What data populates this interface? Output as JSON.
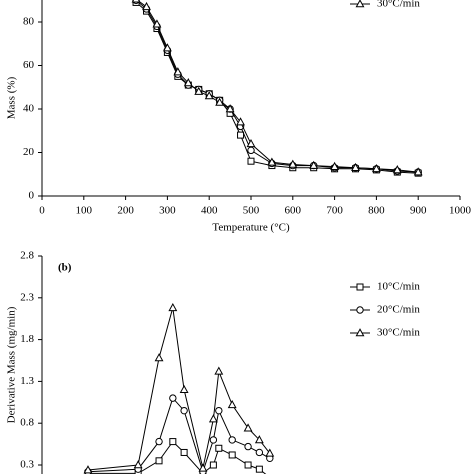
{
  "charts": [
    {
      "type": "line",
      "y_label": "Mass (%)",
      "x_label": "Temperature (°C)",
      "xlim": [
        0,
        1000
      ],
      "ylim": [
        0,
        100
      ],
      "xticks": [
        0,
        100,
        200,
        300,
        400,
        500,
        600,
        700,
        800,
        900,
        1000
      ],
      "yticks": [
        0,
        20,
        40,
        60,
        80
      ],
      "x": [
        225,
        250,
        275,
        300,
        325,
        350,
        375,
        400,
        425,
        450,
        475,
        500,
        550,
        600,
        650,
        700,
        750,
        800,
        850,
        900
      ],
      "series": [
        {
          "name": "10°C/min",
          "marker": "square",
          "values": [
            89,
            85,
            77,
            66,
            55,
            51,
            49,
            47,
            44,
            38,
            28,
            16,
            14,
            13,
            13,
            12.5,
            12.5,
            12,
            11,
            10.5
          ]
        },
        {
          "name": "20°C/min",
          "marker": "circle",
          "values": [
            90,
            86,
            78,
            67,
            56,
            51,
            49,
            47,
            44,
            40,
            32,
            21,
            15,
            14,
            14,
            13,
            13,
            12.5,
            11.5,
            11
          ]
        },
        {
          "name": "30°C/min",
          "marker": "triangle",
          "values": [
            90.5,
            87,
            79,
            68,
            57,
            52,
            48,
            46,
            43,
            40,
            34,
            24,
            15.5,
            14.5,
            14,
            13.5,
            13,
            12.5,
            12,
            11
          ]
        }
      ]
    },
    {
      "type": "line",
      "panel_label": "(b)",
      "y_label": "Derivative Mass (mg/min)",
      "xlim": [
        0,
        1000
      ],
      "ylim": [
        -0.2,
        2.8
      ],
      "yticks": [
        0.3,
        0.8,
        1.3,
        1.8,
        2.3,
        2.8
      ],
      "x": [
        110,
        230,
        280,
        313,
        340,
        385,
        410,
        423,
        455,
        493,
        520,
        545
      ],
      "series": [
        {
          "name": "10°C/min",
          "marker": "square",
          "values": [
            0.2,
            0.2,
            0.35,
            0.58,
            0.45,
            0.2,
            0.3,
            0.5,
            0.42,
            0.3,
            0.25,
            0.15
          ]
        },
        {
          "name": "20°C/min",
          "marker": "circle",
          "values": [
            0.22,
            0.25,
            0.58,
            1.1,
            0.95,
            0.22,
            0.6,
            0.95,
            0.6,
            0.52,
            0.45,
            0.38
          ]
        },
        {
          "name": "30°C/min",
          "marker": "triangle",
          "values": [
            0.24,
            0.3,
            1.58,
            2.18,
            1.2,
            0.26,
            0.85,
            1.42,
            1.02,
            0.74,
            0.6,
            0.44
          ]
        }
      ]
    }
  ]
}
